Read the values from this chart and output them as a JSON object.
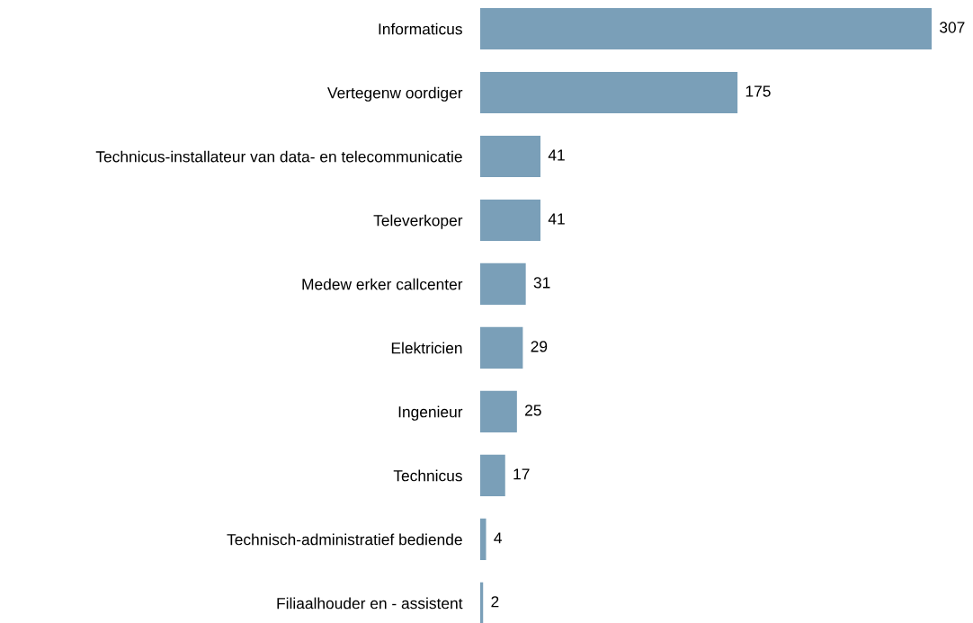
{
  "chart_data": {
    "type": "bar",
    "orientation": "horizontal",
    "categories": [
      "Informaticus",
      "Vertegenw oordiger",
      "Technicus-installateur van data- en telecommunicatie",
      "Televerkoper",
      "Medew erker callcenter",
      "Elektricien",
      "Ingenieur",
      "Technicus",
      "Technisch-administratief bediende",
      "Filiaalhouder en - assistent"
    ],
    "values": [
      307,
      175,
      41,
      41,
      31,
      29,
      25,
      17,
      4,
      2
    ],
    "color": "#7a9fb8",
    "data_labels": true,
    "grid": false,
    "legend": false,
    "tick_labels": "y"
  }
}
